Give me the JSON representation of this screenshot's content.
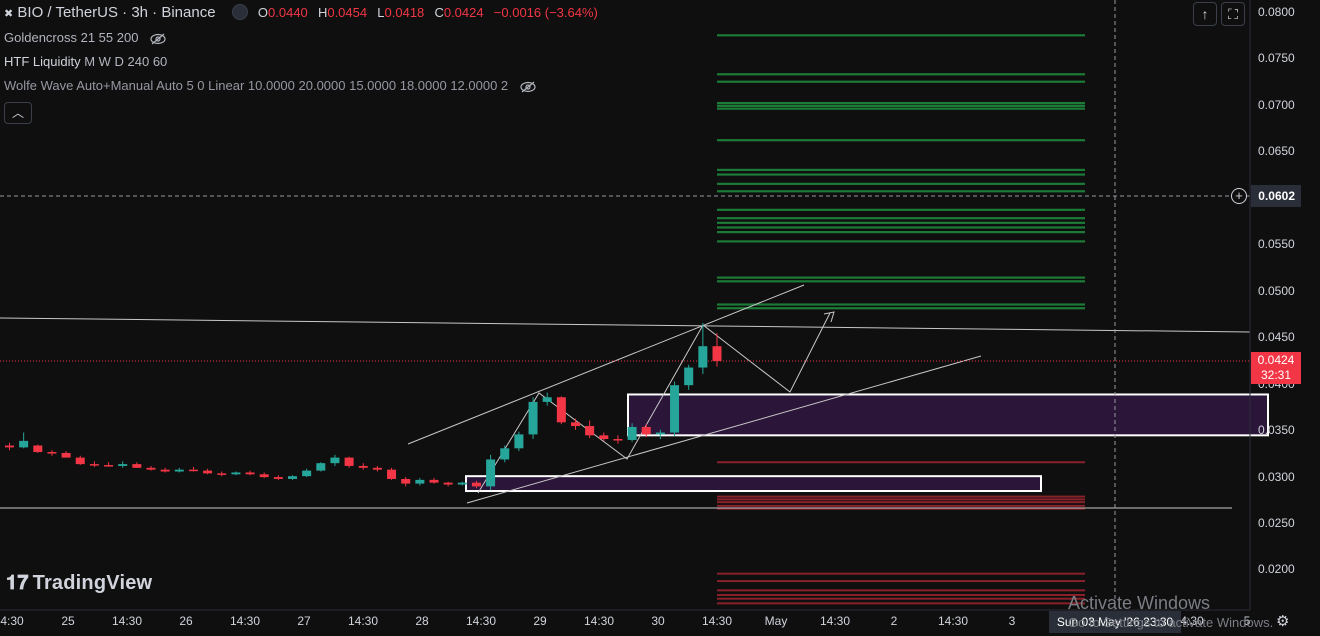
{
  "header": {
    "symbol": "BIO / TetherUS · 3h · Binance",
    "ohlc": [
      {
        "label": "O",
        "value": "0.0440"
      },
      {
        "label": "H",
        "value": "0.0454"
      },
      {
        "label": "L",
        "value": "0.0418"
      },
      {
        "label": "C",
        "value": "0.0424"
      }
    ],
    "change": "−0.0016 (−3.64%)"
  },
  "indicators": {
    "goldencross": "Goldencross 21 55 200",
    "htf_name": "HTF Liquidity",
    "htf_params": "M W D 240 60",
    "wolfe": "Wolfe Wave Auto+Manual Auto 5 0 Linear 10.0000 20.0000 15.0000 18.0000 12.0000 2"
  },
  "price_axis": {
    "ticks": [
      "0.0800",
      "0.0750",
      "0.0700",
      "0.0650",
      "0.0550",
      "0.0500",
      "0.0450",
      "0.0400",
      "0.0350",
      "0.0300",
      "0.0250",
      "0.0200"
    ],
    "crosshair_price": "0.0602",
    "current_price": "0.0424",
    "countdown": "32:31"
  },
  "time_axis": {
    "ticks": [
      "4:30",
      "25",
      "14:30",
      "26",
      "14:30",
      "27",
      "14:30",
      "28",
      "14:30",
      "29",
      "14:30",
      "30",
      "14:30",
      "May",
      "14:30",
      "2",
      "14:30",
      "3",
      "4:30",
      "5"
    ],
    "crosshair_time": "Sun 03 May '26   23:30"
  },
  "branding": {
    "logo": "TradingView"
  },
  "watermark": {
    "line1": "Activate Windows",
    "line2": "Go to Settings to activate Windows."
  },
  "colors": {
    "bull": "#26a69a",
    "bear": "#f23645",
    "zone": "#2b1639",
    "liq_green": "#1e8e3e",
    "liq_red": "#b22833",
    "bg": "#0f0f0f"
  },
  "chart_data": {
    "type": "candlestick",
    "candles": [
      {
        "o": 0.0333,
        "h": 0.0336,
        "l": 0.0328,
        "c": 0.0331
      },
      {
        "o": 0.0331,
        "h": 0.0347,
        "l": 0.033,
        "c": 0.0338
      },
      {
        "o": 0.0333,
        "h": 0.0334,
        "l": 0.0325,
        "c": 0.0326
      },
      {
        "o": 0.0326,
        "h": 0.0328,
        "l": 0.0322,
        "c": 0.0325
      },
      {
        "o": 0.0325,
        "h": 0.0327,
        "l": 0.032,
        "c": 0.032
      },
      {
        "o": 0.032,
        "h": 0.0322,
        "l": 0.0312,
        "c": 0.0313
      },
      {
        "o": 0.0313,
        "h": 0.0316,
        "l": 0.031,
        "c": 0.0312
      },
      {
        "o": 0.0312,
        "h": 0.0315,
        "l": 0.031,
        "c": 0.0311
      },
      {
        "o": 0.0311,
        "h": 0.0316,
        "l": 0.0309,
        "c": 0.0313
      },
      {
        "o": 0.0313,
        "h": 0.0315,
        "l": 0.0309,
        "c": 0.0309
      },
      {
        "o": 0.0309,
        "h": 0.0311,
        "l": 0.0306,
        "c": 0.0307
      },
      {
        "o": 0.0307,
        "h": 0.0309,
        "l": 0.0304,
        "c": 0.0305
      },
      {
        "o": 0.0305,
        "h": 0.0309,
        "l": 0.0304,
        "c": 0.0307
      },
      {
        "o": 0.0307,
        "h": 0.031,
        "l": 0.0305,
        "c": 0.0306
      },
      {
        "o": 0.0306,
        "h": 0.0308,
        "l": 0.0302,
        "c": 0.0303
      },
      {
        "o": 0.0303,
        "h": 0.0305,
        "l": 0.03,
        "c": 0.0302
      },
      {
        "o": 0.0302,
        "h": 0.0305,
        "l": 0.0301,
        "c": 0.0304
      },
      {
        "o": 0.0304,
        "h": 0.0306,
        "l": 0.0301,
        "c": 0.0302
      },
      {
        "o": 0.0302,
        "h": 0.0304,
        "l": 0.0298,
        "c": 0.0299
      },
      {
        "o": 0.0299,
        "h": 0.0301,
        "l": 0.0296,
        "c": 0.0297
      },
      {
        "o": 0.0297,
        "h": 0.0301,
        "l": 0.0296,
        "c": 0.03
      },
      {
        "o": 0.03,
        "h": 0.0308,
        "l": 0.0299,
        "c": 0.0306
      },
      {
        "o": 0.0306,
        "h": 0.0315,
        "l": 0.0305,
        "c": 0.0314
      },
      {
        "o": 0.0314,
        "h": 0.0323,
        "l": 0.0311,
        "c": 0.032
      },
      {
        "o": 0.032,
        "h": 0.0321,
        "l": 0.0309,
        "c": 0.0311
      },
      {
        "o": 0.0311,
        "h": 0.0314,
        "l": 0.0307,
        "c": 0.0309
      },
      {
        "o": 0.0309,
        "h": 0.0311,
        "l": 0.0305,
        "c": 0.0307
      },
      {
        "o": 0.0307,
        "h": 0.0309,
        "l": 0.0296,
        "c": 0.0297
      },
      {
        "o": 0.0297,
        "h": 0.0299,
        "l": 0.0289,
        "c": 0.0292
      },
      {
        "o": 0.0292,
        "h": 0.0298,
        "l": 0.029,
        "c": 0.0296
      },
      {
        "o": 0.0296,
        "h": 0.0298,
        "l": 0.0292,
        "c": 0.0293
      },
      {
        "o": 0.0293,
        "h": 0.0294,
        "l": 0.0289,
        "c": 0.0291
      },
      {
        "o": 0.0291,
        "h": 0.0294,
        "l": 0.029,
        "c": 0.0293
      },
      {
        "o": 0.0293,
        "h": 0.0295,
        "l": 0.0287,
        "c": 0.0289
      },
      {
        "o": 0.0289,
        "h": 0.0323,
        "l": 0.0285,
        "c": 0.0318
      },
      {
        "o": 0.0318,
        "h": 0.0333,
        "l": 0.0315,
        "c": 0.033
      },
      {
        "o": 0.033,
        "h": 0.0348,
        "l": 0.0327,
        "c": 0.0345
      },
      {
        "o": 0.0345,
        "h": 0.0385,
        "l": 0.034,
        "c": 0.038
      },
      {
        "o": 0.038,
        "h": 0.039,
        "l": 0.0376,
        "c": 0.0385
      },
      {
        "o": 0.0385,
        "h": 0.0386,
        "l": 0.0356,
        "c": 0.0358
      },
      {
        "o": 0.0358,
        "h": 0.0362,
        "l": 0.035,
        "c": 0.0354
      },
      {
        "o": 0.0354,
        "h": 0.036,
        "l": 0.0341,
        "c": 0.0344
      },
      {
        "o": 0.0344,
        "h": 0.0347,
        "l": 0.0338,
        "c": 0.034
      },
      {
        "o": 0.034,
        "h": 0.0344,
        "l": 0.0335,
        "c": 0.0339
      },
      {
        "o": 0.0339,
        "h": 0.0357,
        "l": 0.0337,
        "c": 0.0353
      },
      {
        "o": 0.0353,
        "h": 0.0356,
        "l": 0.0342,
        "c": 0.0345
      },
      {
        "o": 0.0345,
        "h": 0.035,
        "l": 0.034,
        "c": 0.0347
      },
      {
        "o": 0.0347,
        "h": 0.0402,
        "l": 0.0343,
        "c": 0.0398
      },
      {
        "o": 0.0398,
        "h": 0.042,
        "l": 0.0393,
        "c": 0.0417
      },
      {
        "o": 0.0417,
        "h": 0.0465,
        "l": 0.041,
        "c": 0.044
      },
      {
        "o": 0.044,
        "h": 0.0454,
        "l": 0.0418,
        "c": 0.0424
      }
    ],
    "zones": [
      {
        "top": 0.0388,
        "bottom": 0.0344
      },
      {
        "top": 0.03,
        "bottom": 0.0284
      }
    ],
    "liquidity_green": [
      0.0775,
      0.0733,
      0.0725,
      0.0702,
      0.0699,
      0.0696,
      0.0662,
      0.063,
      0.0625,
      0.0615,
      0.0607,
      0.0587,
      0.0578,
      0.0573,
      0.0568,
      0.0563,
      0.0553,
      0.0514,
      0.051,
      0.0485,
      0.0481
    ],
    "liquidity_red": [
      0.0315,
      0.0278,
      0.0275,
      0.0272,
      0.0268,
      0.0265,
      0.0195,
      0.0187,
      0.0177,
      0.0172,
      0.0168,
      0.0163
    ],
    "y_range": [
      0.0153,
      0.0812
    ]
  }
}
